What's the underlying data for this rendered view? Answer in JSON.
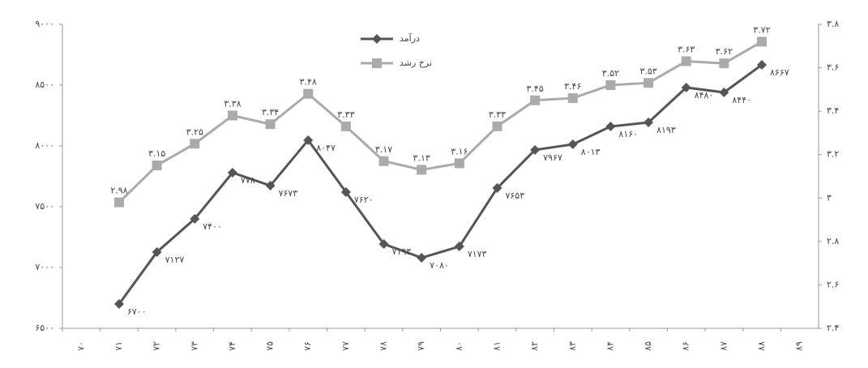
{
  "chart_data": {
    "type": "line",
    "categories": [
      "۷۰",
      "۷۱",
      "۷۲",
      "۷۳",
      "۷۴",
      "۷۵",
      "۷۶",
      "۷۷",
      "۷۸",
      "۷۹",
      "۸۰",
      "۸۱",
      "۸۲",
      "۸۳",
      "۸۴",
      "۸۵",
      "۸۶",
      "۸۷",
      "۸۸",
      "۸۹"
    ],
    "series": [
      {
        "name": "درآمد",
        "color": "#555555",
        "marker": "diamond",
        "axis": "y",
        "values": [
          null,
          6700,
          7127,
          7400,
          7780,
          7673,
          8047,
          7620,
          7193,
          7080,
          7173,
          7653,
          7967,
          8013,
          8160,
          8193,
          8480,
          8440,
          8667,
          null
        ],
        "value_labels": [
          null,
          "۶۷۰۰",
          "۷۱۲۷",
          "۷۴۰۰",
          "۷۷۸۰",
          "۷۶۷۳",
          "۸۰۴۷",
          "۷۶۲۰",
          "۷۱۹۳",
          "۷۰۸۰",
          "۷۱۷۳",
          "۷۶۵۳",
          "۷۹۶۷",
          "۸۰۱۳",
          "۸۱۶۰",
          "۸۱۹۳",
          "۸۴۸۰",
          "۸۴۴۰",
          "۸۶۶۷",
          null
        ]
      },
      {
        "name": "نرخ رشد",
        "color": "#aaaaaa",
        "marker": "square",
        "axis": "y2",
        "values": [
          null,
          2.98,
          3.15,
          3.25,
          3.38,
          3.34,
          3.48,
          3.33,
          3.17,
          3.13,
          3.16,
          3.33,
          3.45,
          3.46,
          3.52,
          3.53,
          3.63,
          3.62,
          3.72,
          null
        ],
        "value_labels": [
          null,
          "۲.۹۸",
          "۳.۱۵",
          "۳.۲۵",
          "۳.۳۸",
          "۳.۳۴",
          "۳.۴۸",
          "۳.۳۳",
          "۳.۱۷",
          "۳.۱۳",
          "۳.۱۶",
          "۳.۳۳",
          "۳.۴۵",
          "۳.۴۶",
          "۳.۵۲",
          "۳.۵۳",
          "۳.۶۳",
          "۳.۶۲",
          "۳.۷۲",
          null
        ]
      }
    ],
    "ylim": [
      6500,
      9000
    ],
    "yticks": [
      {
        "value": 6500,
        "label": "۶۵۰۰"
      },
      {
        "value": 7000,
        "label": "۷۰۰۰"
      },
      {
        "value": 7500,
        "label": "۷۵۰۰"
      },
      {
        "value": 8000,
        "label": "۸۰۰۰"
      },
      {
        "value": 8500,
        "label": "۸۵۰۰"
      },
      {
        "value": 9000,
        "label": "۹۰۰۰"
      }
    ],
    "y2lim": [
      2.4,
      3.8
    ],
    "y2ticks": [
      {
        "value": 2.4,
        "label": "۲.۴"
      },
      {
        "value": 2.6,
        "label": "۲.۶"
      },
      {
        "value": 2.8,
        "label": "۲.۸"
      },
      {
        "value": 3,
        "label": "۳"
      },
      {
        "value": 3.2,
        "label": "۳.۲"
      },
      {
        "value": 3.4,
        "label": "۳.۴"
      },
      {
        "value": 3.6,
        "label": "۳.۶"
      },
      {
        "value": 3.8,
        "label": "۳.۸"
      }
    ],
    "grid": false,
    "legend": "top"
  }
}
